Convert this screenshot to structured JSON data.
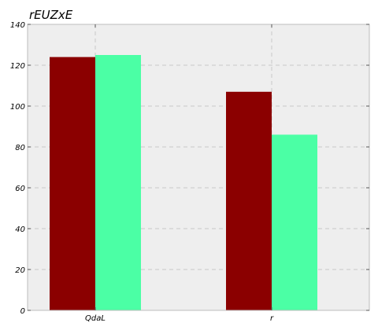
{
  "chart_data": {
    "type": "bar",
    "title": "rEUZxE",
    "xlabel": "",
    "ylabel": "",
    "categories": [
      "QdaL",
      "r"
    ],
    "series": [
      {
        "values": [
          124,
          107
        ],
        "color": "#8b0000"
      },
      {
        "values": [
          125,
          86
        ],
        "color": "#4bffa5"
      }
    ],
    "ylim": [
      0,
      140
    ],
    "yticks": [
      0,
      20,
      40,
      60,
      80,
      100,
      120,
      140
    ],
    "grid": true,
    "legend": "none",
    "background": "#eeeeee"
  }
}
